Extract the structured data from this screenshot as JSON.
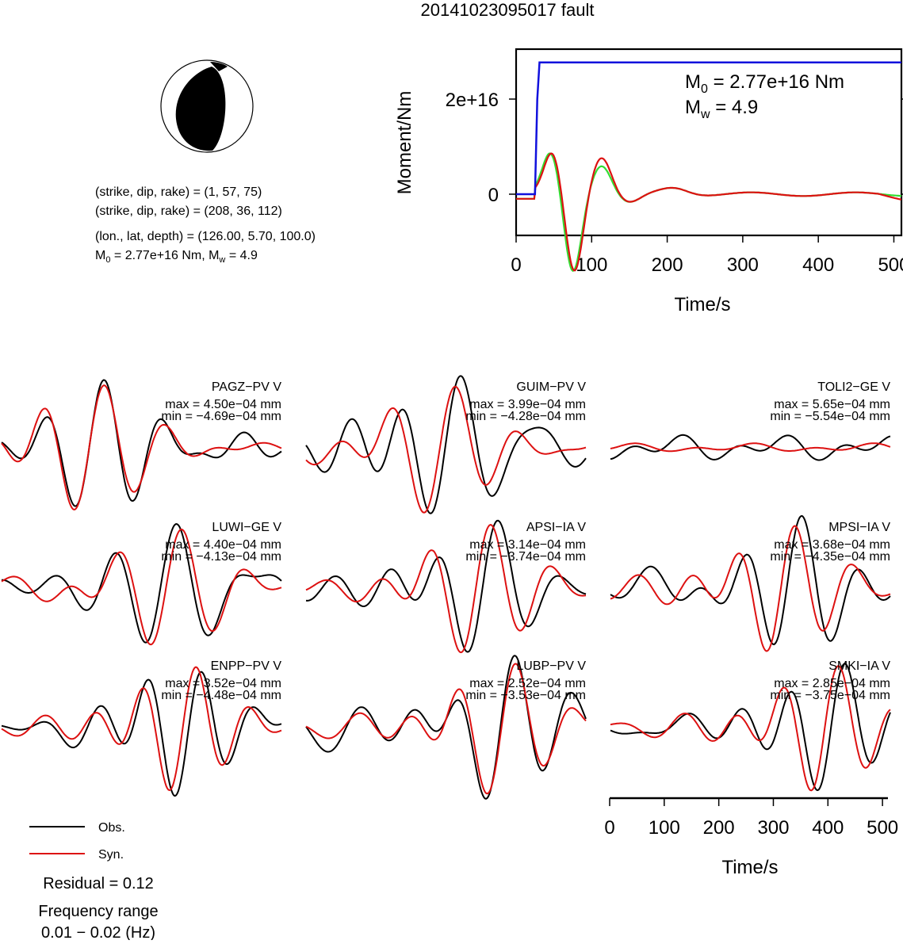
{
  "title": "20141023095017 fault",
  "focal": {
    "line1": "(strike, dip, rake) = (1, 57, 75)",
    "line2": "(strike, dip, rake) = (208, 36, 112)",
    "line3": "(lon., lat, depth) = (126.00, 5.70, 100.0)",
    "line4_pre": "M",
    "line4_sub": "0",
    "line4_mid": " = 2.77e+16 Nm, M",
    "line4_sub2": "w",
    "line4_post": " = 4.9"
  },
  "stf": {
    "ylabel": "Moment/Nm",
    "xlabel": "Time/s",
    "m0_pre": "M",
    "m0_sub": "0",
    "m0_post": " = 2.77e+16 Nm",
    "mw_pre": "M",
    "mw_sub": "w",
    "mw_post": " = 4.9",
    "ytick_labels": [
      "0",
      "2e+16"
    ],
    "xtick_labels": [
      "0",
      "100",
      "200",
      "300",
      "400",
      "500"
    ]
  },
  "waveform_axis": {
    "xlabel": "Time/s",
    "xtick_labels": [
      "0",
      "100",
      "200",
      "300",
      "400",
      "500"
    ]
  },
  "legend": {
    "obs": "Obs.",
    "syn": "Syn.",
    "residual": "Residual = 0.12",
    "freq_title": "Frequency range",
    "freq_value": "0.01 − 0.02 (Hz)"
  },
  "colors": {
    "obs": "#000000",
    "syn": "#dd1111",
    "stf_moment": "#1111dd",
    "stf_rate_green": "#33dd33",
    "stf_rate_red": "#dd1111"
  },
  "chart_data": [
    {
      "type": "line",
      "name": "moment-time-function",
      "xlabel": "Time/s",
      "ylabel": "Moment/Nm",
      "xlim": [
        0,
        510
      ],
      "xticks": [
        0,
        100,
        200,
        300,
        400,
        500
      ],
      "yticks": [
        0,
        2e+16
      ],
      "series": [
        {
          "name": "cumulative-moment",
          "color": "#1111dd",
          "x": [
            0,
            25,
            28,
            31,
            35,
            510
          ],
          "y": [
            0,
            0,
            2e+16,
            2.77e+16,
            2.77e+16,
            2.77e+16
          ]
        }
      ],
      "annotations": [
        "M0 = 2.77e+16 Nm",
        "Mw = 4.9"
      ]
    },
    {
      "type": "line",
      "name": "waveforms",
      "xlim": [
        0,
        510
      ],
      "xticks": [
        0,
        100,
        200,
        300,
        400,
        500
      ],
      "stations": [
        {
          "label": "PAGZ−PV V",
          "max": "max = 4.50e−04 mm",
          "min": "min = −4.69e−04 mm",
          "max_value": 0.00045,
          "min_value": -0.000469
        },
        {
          "label": "GUIM−PV V",
          "max": "max = 3.99e−04 mm",
          "min": "min = −4.28e−04 mm",
          "max_value": 0.000399,
          "min_value": -0.000428
        },
        {
          "label": "TOLI2−GE V",
          "max": "max = 5.65e−04 mm",
          "min": "min = −5.54e−04 mm",
          "max_value": 0.000565,
          "min_value": -0.000554
        },
        {
          "label": "LUWI−GE V",
          "max": "max = 4.40e−04 mm",
          "min": "min = −4.13e−04 mm",
          "max_value": 0.00044,
          "min_value": -0.000413
        },
        {
          "label": "APSI−IA V",
          "max": "max = 3.14e−04 mm",
          "min": "min = −3.74e−04 mm",
          "max_value": 0.000314,
          "min_value": -0.000374
        },
        {
          "label": "MPSI−IA V",
          "max": "max = 3.68e−04 mm",
          "min": "min = −4.35e−04 mm",
          "max_value": 0.000368,
          "min_value": -0.000435
        },
        {
          "label": "ENPP−PV V",
          "max": "max = 3.52e−04 mm",
          "min": "min = −4.48e−04 mm",
          "max_value": 0.000352,
          "min_value": -0.000448
        },
        {
          "label": "LUBP−PV V",
          "max": "max = 2.52e−04 mm",
          "min": "min = −3.53e−04 mm",
          "max_value": 0.000252,
          "min_value": -0.000353
        },
        {
          "label": "SMKI−IA V",
          "max": "max = 2.85e−04 mm",
          "min": "min = −3.75e−04 mm",
          "max_value": 0.000285,
          "min_value": -0.000375
        }
      ]
    }
  ]
}
